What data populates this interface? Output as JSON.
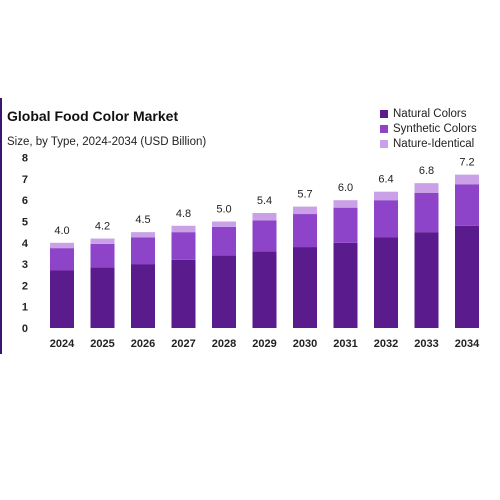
{
  "chart_data": {
    "type": "bar",
    "stacked": true,
    "title": "Global Food Color Market",
    "subtitle": "Size, by Type, 2024-2034 (USD Billion)",
    "categories": [
      "2024",
      "2025",
      "2026",
      "2027",
      "2028",
      "2029",
      "2030",
      "2031",
      "2032",
      "2033",
      "2034"
    ],
    "series": [
      {
        "name": "Natural Colors",
        "color": "#5a1c8c",
        "values": [
          2.7,
          2.85,
          3.0,
          3.2,
          3.4,
          3.6,
          3.8,
          4.0,
          4.25,
          4.5,
          4.8
        ]
      },
      {
        "name": "Synthetic Colors",
        "color": "#8e44c8",
        "values": [
          1.05,
          1.1,
          1.25,
          1.3,
          1.35,
          1.45,
          1.55,
          1.65,
          1.75,
          1.85,
          1.95
        ]
      },
      {
        "name": "Nature-Identical",
        "color": "#caa1e6",
        "values": [
          0.25,
          0.25,
          0.25,
          0.3,
          0.25,
          0.35,
          0.35,
          0.35,
          0.4,
          0.45,
          0.45
        ]
      }
    ],
    "totals": [
      "4.0",
      "4.2",
      "4.5",
      "4.8",
      "5.0",
      "5.4",
      "5.7",
      "6.0",
      "6.4",
      "6.8",
      "7.2"
    ],
    "yticks": [
      "0",
      "1",
      "2",
      "3",
      "4",
      "5",
      "6",
      "7",
      "8"
    ],
    "ylim": [
      0,
      8
    ],
    "legend_position": "top-right",
    "grid": false
  }
}
